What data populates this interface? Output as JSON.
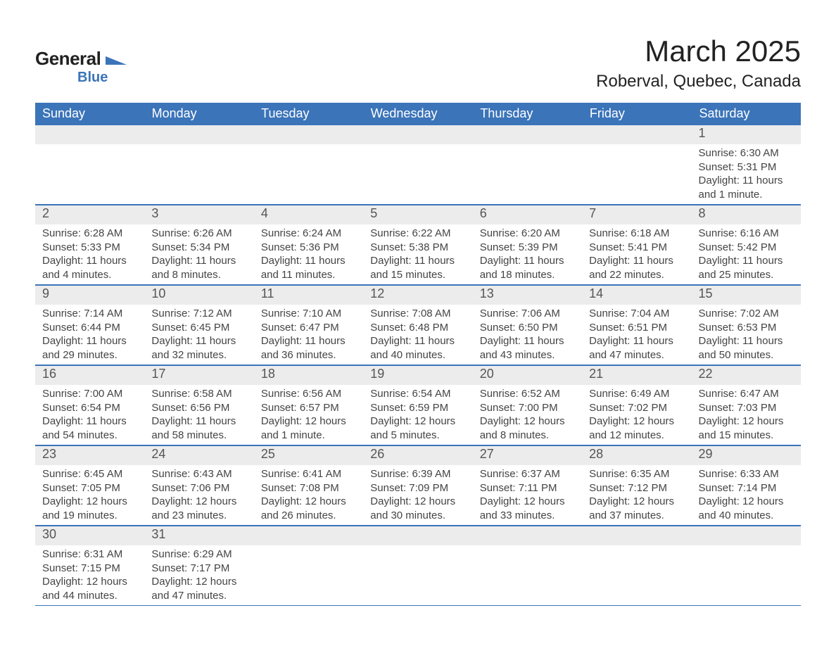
{
  "brand": {
    "name_general": "General",
    "name_blue": "Blue",
    "logo_color": "#3b74b9"
  },
  "title": "March 2025",
  "location": "Roberval, Quebec, Canada",
  "colors": {
    "header_bg": "#3b74b9",
    "header_text": "#ffffff",
    "daynum_bg": "#ececec",
    "daynum_text": "#555555",
    "body_text": "#444444",
    "rule": "#3b74b9",
    "page_bg": "#ffffff"
  },
  "fonts": {
    "family": "Arial",
    "title_size_pt": 32,
    "location_size_pt": 18,
    "dow_size_pt": 14,
    "daynum_size_pt": 14,
    "body_size_pt": 11
  },
  "days_of_week": [
    "Sunday",
    "Monday",
    "Tuesday",
    "Wednesday",
    "Thursday",
    "Friday",
    "Saturday"
  ],
  "label_sunrise": "Sunrise:",
  "label_sunset": "Sunset:",
  "label_daylight": "Daylight:",
  "weeks": [
    [
      {
        "num": "",
        "sunrise": "",
        "sunset": "",
        "daylight": ""
      },
      {
        "num": "",
        "sunrise": "",
        "sunset": "",
        "daylight": ""
      },
      {
        "num": "",
        "sunrise": "",
        "sunset": "",
        "daylight": ""
      },
      {
        "num": "",
        "sunrise": "",
        "sunset": "",
        "daylight": ""
      },
      {
        "num": "",
        "sunrise": "",
        "sunset": "",
        "daylight": ""
      },
      {
        "num": "",
        "sunrise": "",
        "sunset": "",
        "daylight": ""
      },
      {
        "num": "1",
        "sunrise": "6:30 AM",
        "sunset": "5:31 PM",
        "daylight": "11 hours and 1 minute."
      }
    ],
    [
      {
        "num": "2",
        "sunrise": "6:28 AM",
        "sunset": "5:33 PM",
        "daylight": "11 hours and 4 minutes."
      },
      {
        "num": "3",
        "sunrise": "6:26 AM",
        "sunset": "5:34 PM",
        "daylight": "11 hours and 8 minutes."
      },
      {
        "num": "4",
        "sunrise": "6:24 AM",
        "sunset": "5:36 PM",
        "daylight": "11 hours and 11 minutes."
      },
      {
        "num": "5",
        "sunrise": "6:22 AM",
        "sunset": "5:38 PM",
        "daylight": "11 hours and 15 minutes."
      },
      {
        "num": "6",
        "sunrise": "6:20 AM",
        "sunset": "5:39 PM",
        "daylight": "11 hours and 18 minutes."
      },
      {
        "num": "7",
        "sunrise": "6:18 AM",
        "sunset": "5:41 PM",
        "daylight": "11 hours and 22 minutes."
      },
      {
        "num": "8",
        "sunrise": "6:16 AM",
        "sunset": "5:42 PM",
        "daylight": "11 hours and 25 minutes."
      }
    ],
    [
      {
        "num": "9",
        "sunrise": "7:14 AM",
        "sunset": "6:44 PM",
        "daylight": "11 hours and 29 minutes."
      },
      {
        "num": "10",
        "sunrise": "7:12 AM",
        "sunset": "6:45 PM",
        "daylight": "11 hours and 32 minutes."
      },
      {
        "num": "11",
        "sunrise": "7:10 AM",
        "sunset": "6:47 PM",
        "daylight": "11 hours and 36 minutes."
      },
      {
        "num": "12",
        "sunrise": "7:08 AM",
        "sunset": "6:48 PM",
        "daylight": "11 hours and 40 minutes."
      },
      {
        "num": "13",
        "sunrise": "7:06 AM",
        "sunset": "6:50 PM",
        "daylight": "11 hours and 43 minutes."
      },
      {
        "num": "14",
        "sunrise": "7:04 AM",
        "sunset": "6:51 PM",
        "daylight": "11 hours and 47 minutes."
      },
      {
        "num": "15",
        "sunrise": "7:02 AM",
        "sunset": "6:53 PM",
        "daylight": "11 hours and 50 minutes."
      }
    ],
    [
      {
        "num": "16",
        "sunrise": "7:00 AM",
        "sunset": "6:54 PM",
        "daylight": "11 hours and 54 minutes."
      },
      {
        "num": "17",
        "sunrise": "6:58 AM",
        "sunset": "6:56 PM",
        "daylight": "11 hours and 58 minutes."
      },
      {
        "num": "18",
        "sunrise": "6:56 AM",
        "sunset": "6:57 PM",
        "daylight": "12 hours and 1 minute."
      },
      {
        "num": "19",
        "sunrise": "6:54 AM",
        "sunset": "6:59 PM",
        "daylight": "12 hours and 5 minutes."
      },
      {
        "num": "20",
        "sunrise": "6:52 AM",
        "sunset": "7:00 PM",
        "daylight": "12 hours and 8 minutes."
      },
      {
        "num": "21",
        "sunrise": "6:49 AM",
        "sunset": "7:02 PM",
        "daylight": "12 hours and 12 minutes."
      },
      {
        "num": "22",
        "sunrise": "6:47 AM",
        "sunset": "7:03 PM",
        "daylight": "12 hours and 15 minutes."
      }
    ],
    [
      {
        "num": "23",
        "sunrise": "6:45 AM",
        "sunset": "7:05 PM",
        "daylight": "12 hours and 19 minutes."
      },
      {
        "num": "24",
        "sunrise": "6:43 AM",
        "sunset": "7:06 PM",
        "daylight": "12 hours and 23 minutes."
      },
      {
        "num": "25",
        "sunrise": "6:41 AM",
        "sunset": "7:08 PM",
        "daylight": "12 hours and 26 minutes."
      },
      {
        "num": "26",
        "sunrise": "6:39 AM",
        "sunset": "7:09 PM",
        "daylight": "12 hours and 30 minutes."
      },
      {
        "num": "27",
        "sunrise": "6:37 AM",
        "sunset": "7:11 PM",
        "daylight": "12 hours and 33 minutes."
      },
      {
        "num": "28",
        "sunrise": "6:35 AM",
        "sunset": "7:12 PM",
        "daylight": "12 hours and 37 minutes."
      },
      {
        "num": "29",
        "sunrise": "6:33 AM",
        "sunset": "7:14 PM",
        "daylight": "12 hours and 40 minutes."
      }
    ],
    [
      {
        "num": "30",
        "sunrise": "6:31 AM",
        "sunset": "7:15 PM",
        "daylight": "12 hours and 44 minutes."
      },
      {
        "num": "31",
        "sunrise": "6:29 AM",
        "sunset": "7:17 PM",
        "daylight": "12 hours and 47 minutes."
      },
      {
        "num": "",
        "sunrise": "",
        "sunset": "",
        "daylight": ""
      },
      {
        "num": "",
        "sunrise": "",
        "sunset": "",
        "daylight": ""
      },
      {
        "num": "",
        "sunrise": "",
        "sunset": "",
        "daylight": ""
      },
      {
        "num": "",
        "sunrise": "",
        "sunset": "",
        "daylight": ""
      },
      {
        "num": "",
        "sunrise": "",
        "sunset": "",
        "daylight": ""
      }
    ]
  ]
}
